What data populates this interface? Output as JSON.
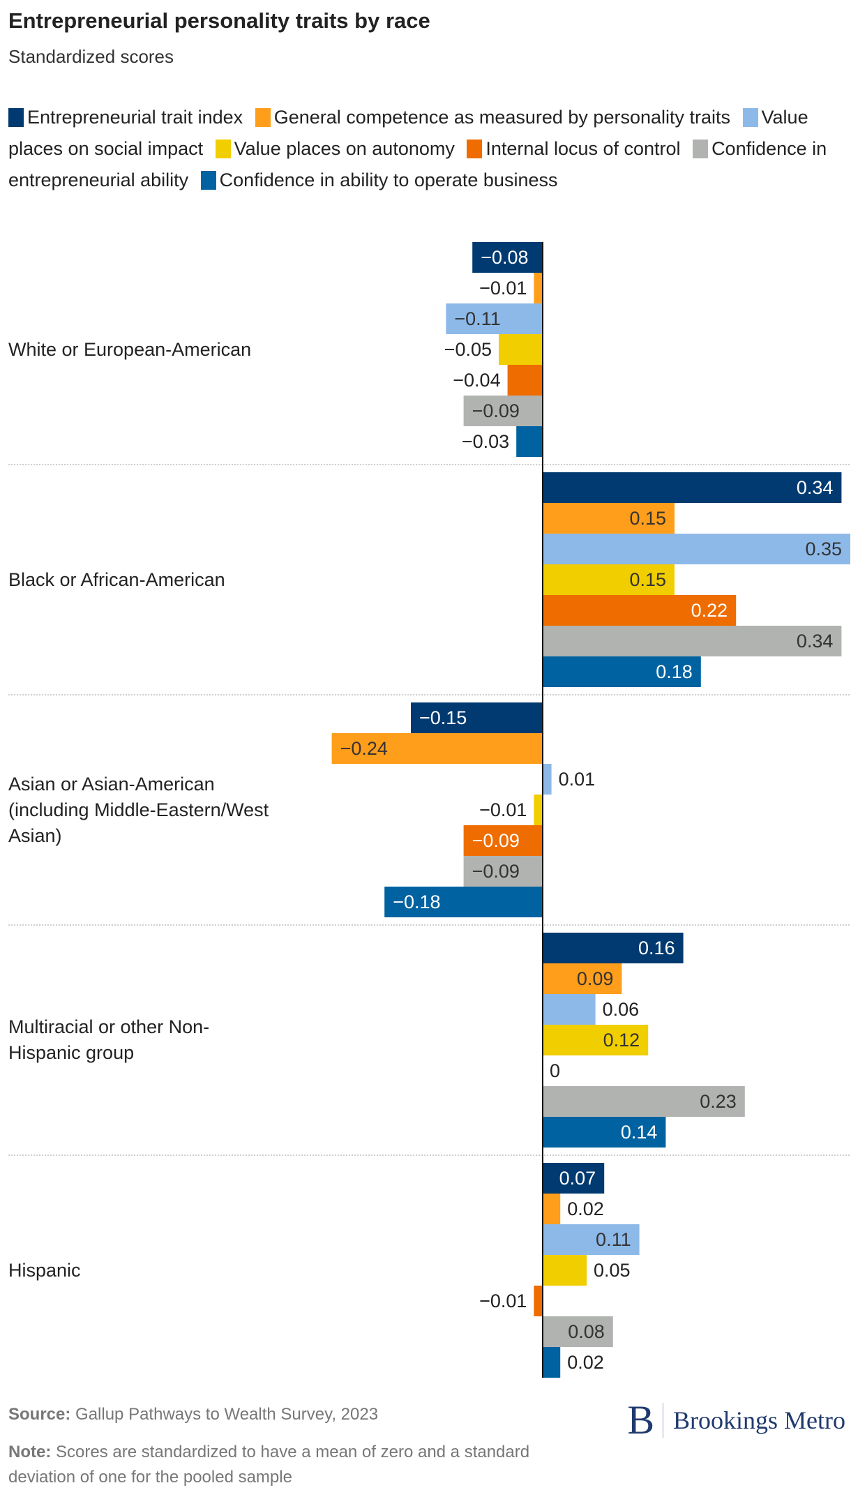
{
  "chart_data": {
    "type": "bar",
    "orientation": "horizontal",
    "title": "Entrepreneurial personality traits by race",
    "subtitle": "Standardized scores",
    "categories": [
      [
        "White or European-American"
      ],
      [
        "Black or African-American"
      ],
      [
        "Asian or Asian-American",
        "(including Middle-Eastern/West",
        "Asian)"
      ],
      [
        "Multiracial or other Non-",
        "Hispanic group"
      ],
      [
        "Hispanic"
      ]
    ],
    "series": [
      {
        "name": "Entrepreneurial trait index",
        "color": "#003A70",
        "values": [
          -0.08,
          0.34,
          -0.15,
          0.16,
          0.07
        ]
      },
      {
        "name": "General competence as measured by personality traits",
        "color": "#FF9E1B",
        "values": [
          -0.01,
          0.15,
          -0.24,
          0.09,
          0.02
        ]
      },
      {
        "name": "Value places on social impact",
        "color": "#8DB9E8",
        "values": [
          -0.11,
          0.35,
          0.01,
          0.06,
          0.11
        ]
      },
      {
        "name": "Value places on autonomy",
        "color": "#F0CE00",
        "values": [
          -0.05,
          0.15,
          -0.01,
          0.12,
          0.05
        ]
      },
      {
        "name": "Internal locus of control",
        "color": "#EE6C00",
        "values": [
          -0.04,
          0.22,
          -0.09,
          0,
          -0.01
        ]
      },
      {
        "name": "Confidence in entrepreneurial ability",
        "color": "#B1B3B1",
        "values": [
          -0.09,
          0.34,
          -0.09,
          0.23,
          0.08
        ]
      },
      {
        "name": "Confidence in ability to operate business",
        "color": "#0062A0",
        "values": [
          -0.03,
          0.18,
          -0.18,
          0.14,
          0.02
        ]
      }
    ],
    "legend": "top",
    "grid": false,
    "xlim": [
      -0.25,
      0.35
    ]
  },
  "footer": {
    "source_label": "Source:",
    "source_text": "Gallup Pathways to Wealth Survey, 2023",
    "note_label": "Note:",
    "note_text": "Scores are standardized to have a mean of zero and a standard deviation of one for the pooled sample"
  },
  "logo": {
    "letter": "B",
    "name": "Brookings Metro"
  }
}
